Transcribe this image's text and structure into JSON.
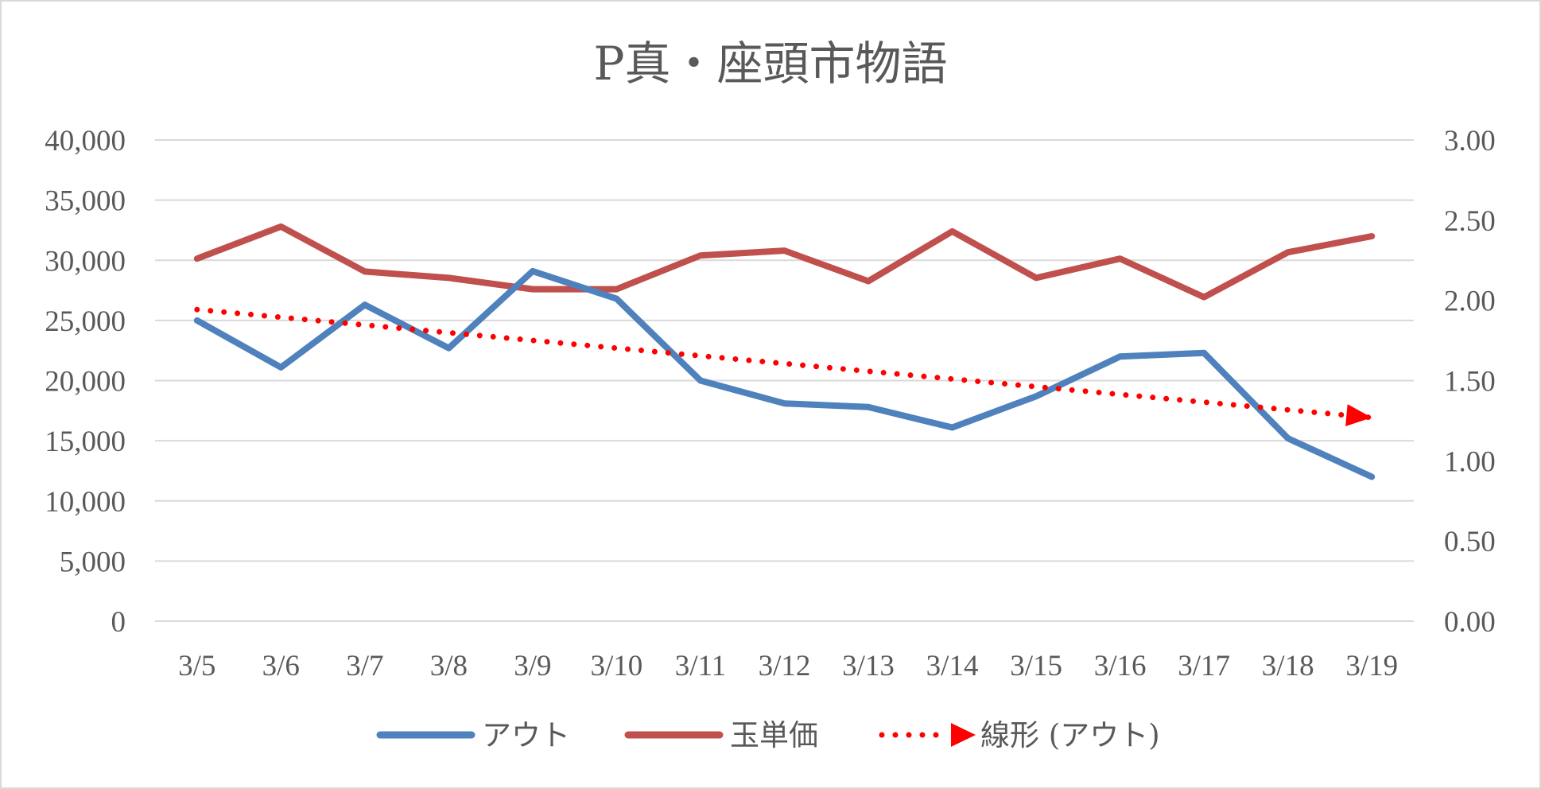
{
  "chart_data": {
    "type": "line",
    "title": "P真・座頭市物語",
    "categories": [
      "3/5",
      "3/6",
      "3/7",
      "3/8",
      "3/9",
      "3/10",
      "3/11",
      "3/12",
      "3/13",
      "3/14",
      "3/15",
      "3/16",
      "3/17",
      "3/18",
      "3/19"
    ],
    "y_left": {
      "range": [
        0,
        40000
      ],
      "tick_labels": [
        "0",
        "5,000",
        "10,000",
        "15,000",
        "20,000",
        "25,000",
        "30,000",
        "35,000",
        "40,000"
      ],
      "tick_values": [
        0,
        5000,
        10000,
        15000,
        20000,
        25000,
        30000,
        35000,
        40000
      ]
    },
    "y_right": {
      "range": [
        0,
        3.0
      ],
      "tick_labels": [
        "0.00",
        "0.50",
        "1.00",
        "1.50",
        "2.00",
        "2.50",
        "3.00"
      ],
      "tick_values": [
        0,
        0.5,
        1.0,
        1.5,
        2.0,
        2.5,
        3.0
      ]
    },
    "series": [
      {
        "name": "アウト",
        "axis": "left",
        "color": "#4f81bd",
        "values": [
          25000,
          21100,
          26300,
          22700,
          29100,
          26800,
          20000,
          18100,
          17800,
          16100,
          18700,
          22000,
          22300,
          15200,
          12000
        ]
      },
      {
        "name": "玉単価",
        "axis": "right",
        "color": "#c0504d",
        "values": [
          2.26,
          2.46,
          2.18,
          2.14,
          2.07,
          2.07,
          2.28,
          2.31,
          2.12,
          2.43,
          2.14,
          2.26,
          2.02,
          2.3,
          2.4
        ]
      },
      {
        "name": "線形 (アウト)",
        "axis": "left",
        "color": "#ff0000",
        "style": "dotted-trendline",
        "values": [
          25902,
          25261,
          24620,
          23979,
          23338,
          22697,
          22056,
          21415,
          20774,
          20133,
          19492,
          18851,
          18210,
          17569,
          16928
        ]
      }
    ],
    "legend": {
      "position": "bottom",
      "items": [
        "アウト",
        "玉単価",
        "線形 (アウト)"
      ]
    },
    "grid": true
  }
}
